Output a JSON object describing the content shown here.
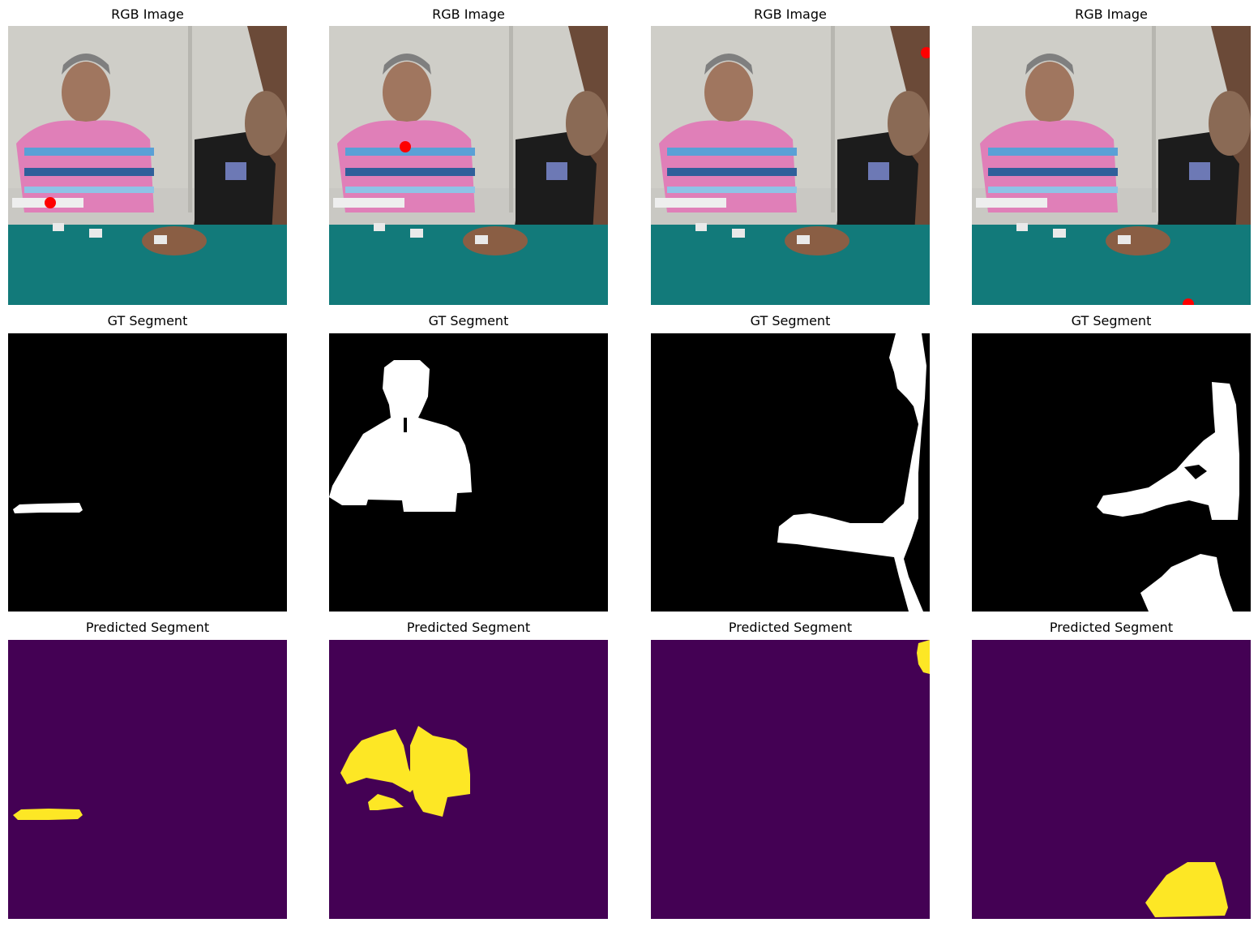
{
  "titles": {
    "rgb": "RGB Image",
    "gt": "GT Segment",
    "pred": "Predicted Segment"
  },
  "colors": {
    "background": "#ffffff",
    "gt_bg": "#000000",
    "gt_fg": "#ffffff",
    "pred_bg": "#440154",
    "pred_fg": "#fde725",
    "click_point": "#ff0000",
    "table": "#127a7a",
    "wall": "#c9c8c3"
  },
  "rows": [
    {
      "key": "rgb",
      "title_key": "titles.rgb"
    },
    {
      "key": "gt",
      "title_key": "titles.gt"
    },
    {
      "key": "pred",
      "title_key": "titles.pred"
    }
  ],
  "columns": [
    {
      "name": "column-1"
    },
    {
      "name": "column-2"
    },
    {
      "name": "column-3"
    },
    {
      "name": "column-4"
    }
  ]
}
